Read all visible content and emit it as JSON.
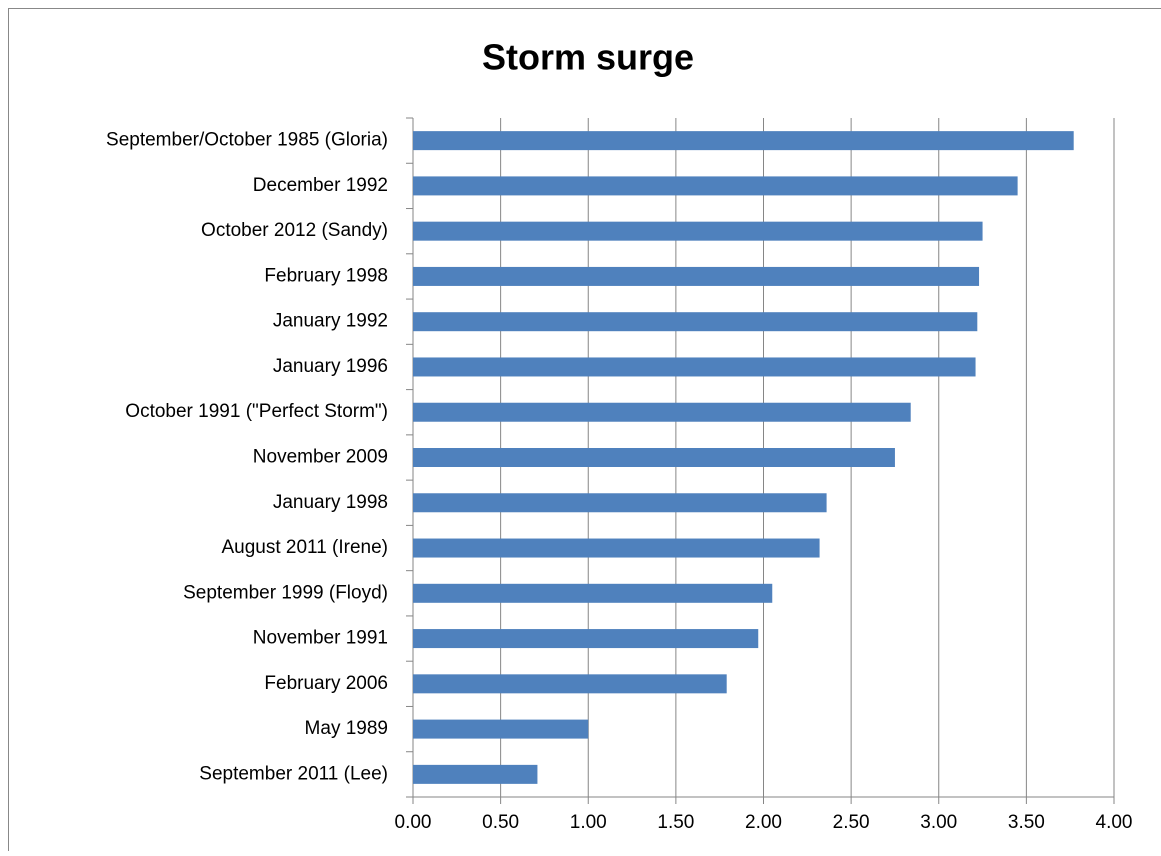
{
  "chart_data": {
    "type": "barh",
    "title": "Storm surge",
    "categories": [
      "September/October 1985 (Gloria)",
      "December 1992",
      "October 2012 (Sandy)",
      "February 1998",
      "January 1992",
      "January 1996",
      "October 1991 (\"Perfect Storm\")",
      "November 2009",
      "January 1998",
      "August 2011 (Irene)",
      "September 1999 (Floyd)",
      "November 1991",
      "February 2006",
      "May 1989",
      "September 2011 (Lee)"
    ],
    "values": [
      3.77,
      3.45,
      3.25,
      3.23,
      3.22,
      3.21,
      2.84,
      2.75,
      2.36,
      2.32,
      2.05,
      1.97,
      1.79,
      1.0,
      0.71
    ],
    "color": "#4f81bd",
    "xlim": [
      0,
      4
    ],
    "xticks": [
      {
        "value": 0,
        "label": "0.00"
      },
      {
        "value": 0.5,
        "label": "0.50"
      },
      {
        "value": 1,
        "label": "1.00"
      },
      {
        "value": 1.5,
        "label": "1.50"
      },
      {
        "value": 2,
        "label": "2.00"
      },
      {
        "value": 2.5,
        "label": "2.50"
      },
      {
        "value": 3,
        "label": "3.00"
      },
      {
        "value": 3.5,
        "label": "3.50"
      },
      {
        "value": 4,
        "label": "4.00"
      }
    ],
    "grid": true
  }
}
